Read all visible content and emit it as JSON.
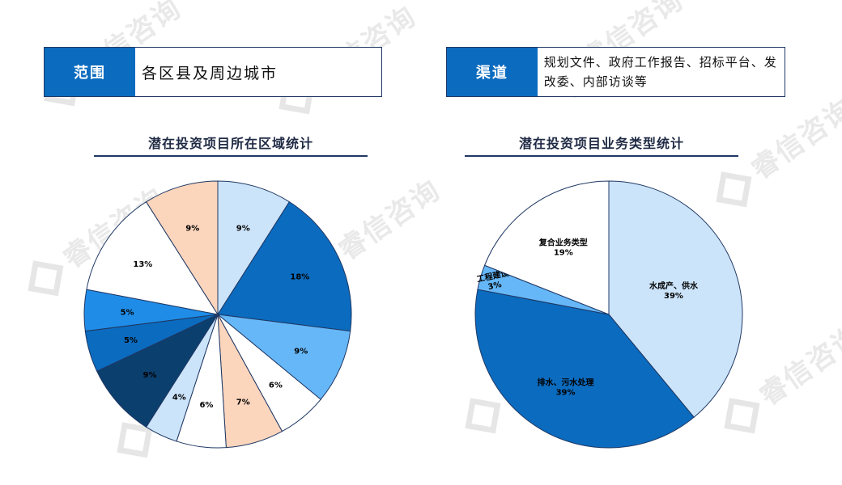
{
  "watermark": "睿信咨询",
  "scope_box": {
    "label": "范围",
    "value": "各区县及周边城市"
  },
  "channel_box": {
    "label": "渠道",
    "value": "规划文件、政府工作报告、招标平台、发改委、内部访谈等"
  },
  "chart_data": [
    {
      "type": "pie",
      "title": "潜在投资项目所在区域统计",
      "slices": [
        {
          "label": "",
          "value": 9,
          "data_label": "9%",
          "color": "#cce4fa"
        },
        {
          "label": "",
          "value": 18,
          "data_label": "18%",
          "color": "#0b6bbf"
        },
        {
          "label": "",
          "value": 9,
          "data_label": "9%",
          "color": "#66b7f7"
        },
        {
          "label": "",
          "value": 6,
          "data_label": "6%",
          "color": "#ffffff"
        },
        {
          "label": "",
          "value": 7,
          "data_label": "7%",
          "color": "#fcd5bd"
        },
        {
          "label": "",
          "value": 6,
          "data_label": "6%",
          "color": "#ffffff"
        },
        {
          "label": "",
          "value": 4,
          "data_label": "4%",
          "color": "#cce4fa"
        },
        {
          "label": "",
          "value": 9,
          "data_label": "9%",
          "color": "#0b3f6e"
        },
        {
          "label": "",
          "value": 5,
          "data_label": "5%",
          "color": "#0b6bbf"
        },
        {
          "label": "",
          "value": 5,
          "data_label": "5%",
          "color": "#1f8de8"
        },
        {
          "label": "",
          "value": 13,
          "data_label": "13%",
          "color": "#ffffff"
        },
        {
          "label": "",
          "value": 9,
          "data_label": "9%",
          "color": "#fcd5bd"
        }
      ]
    },
    {
      "type": "pie",
      "title": "潜在投资项目业务类型统计",
      "slices": [
        {
          "label": "水成产、供水",
          "value": 39,
          "data_label": "39%",
          "color": "#cce4fa"
        },
        {
          "label": "排水、污水处理",
          "value": 39,
          "data_label": "39%",
          "color": "#0b6bbf"
        },
        {
          "label": "工程建设",
          "value": 3,
          "data_label": "3%",
          "color": "#66b7f7"
        },
        {
          "label": "复合业务类型",
          "value": 19,
          "data_label": "19%",
          "color": "#ffffff"
        }
      ]
    }
  ]
}
